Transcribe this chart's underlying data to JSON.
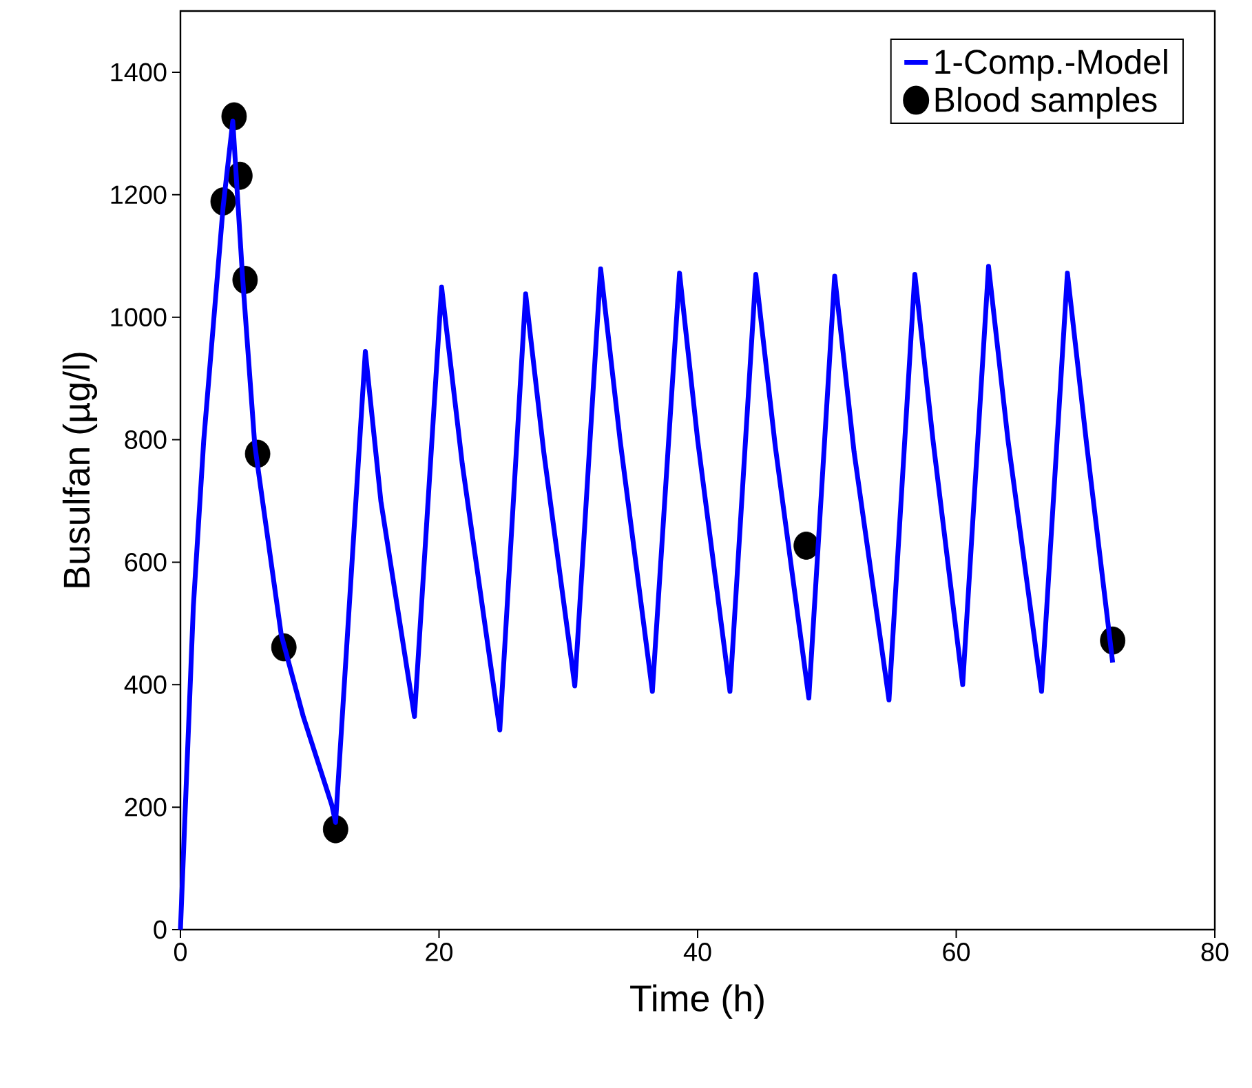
{
  "chart_data": {
    "type": "line",
    "xlabel": "Time (h)",
    "ylabel": "Busulfan (µg/l)",
    "xlim": [
      0,
      80
    ],
    "ylim": [
      0,
      1500
    ],
    "xticks": [
      0,
      20,
      40,
      60,
      80
    ],
    "yticks": [
      0,
      200,
      400,
      600,
      800,
      1000,
      1200,
      1400
    ],
    "legend": "top right",
    "series": [
      {
        "name": "1-Comp.-Model",
        "color": "#0000ff",
        "marker": "none",
        "x": [
          0,
          1.0,
          1.8,
          3.3,
          4.05,
          4.8,
          5.75,
          7.8,
          9.5,
          11.7,
          12.0,
          14.3,
          15.5,
          18.1,
          20.2,
          21.8,
          24.7,
          26.7,
          28.1,
          30.5,
          32.5,
          34.0,
          36.5,
          38.6,
          40.0,
          42.5,
          44.5,
          46.0,
          48.6,
          50.6,
          52.1,
          54.8,
          56.8,
          58.2,
          60.5,
          62.5,
          64.0,
          66.6,
          68.6,
          70.1,
          72.1
        ],
        "values": [
          0,
          528,
          798,
          1180,
          1320,
          1067,
          791,
          481,
          348,
          204,
          175,
          944,
          700,
          348,
          1049,
          760,
          326,
          1038,
          780,
          398,
          1079,
          800,
          389,
          1072,
          800,
          389,
          1070,
          790,
          378,
          1067,
          780,
          375,
          1070,
          800,
          400,
          1083,
          800,
          389,
          1072,
          790,
          436
        ]
      },
      {
        "name": "Blood samples",
        "type": "scatter",
        "color": "#000000",
        "marker": "circle",
        "x": [
          3.3,
          4.15,
          4.6,
          5.0,
          5.97,
          8.0,
          12.0,
          48.4,
          72.1
        ],
        "values": [
          1189,
          1328,
          1231,
          1061,
          777,
          461,
          164,
          627,
          472
        ]
      }
    ]
  }
}
